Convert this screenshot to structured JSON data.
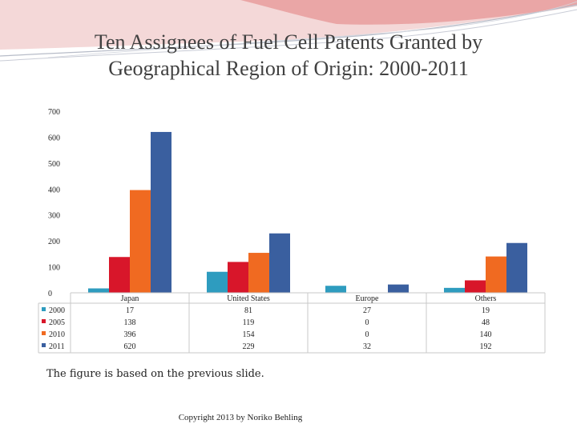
{
  "slide": {
    "title_line1": "Ten Assignees of Fuel Cell Patents Granted by",
    "title_line2": "Geographical Region of Origin: 2000-2011",
    "note": "The figure is based on the previous slide.",
    "copyright": "Copyright 2013 by Noriko Behling"
  },
  "chart_data": {
    "type": "bar",
    "title": "Ten Assignees of Fuel Cell Patents Granted by Geographical Region of Origin: 2000-2011",
    "categories": [
      "Japan",
      "United States",
      "Europe",
      "Others"
    ],
    "series": [
      {
        "name": "2000",
        "color": "#2e9cbf",
        "values": [
          17,
          81,
          27,
          19
        ]
      },
      {
        "name": "2005",
        "color": "#d8162a",
        "values": [
          138,
          119,
          0,
          48
        ]
      },
      {
        "name": "2010",
        "color": "#f06a21",
        "values": [
          396,
          154,
          0,
          140
        ]
      },
      {
        "name": "2011",
        "color": "#3a5f9f",
        "values": [
          620,
          229,
          32,
          192
        ]
      }
    ],
    "yticks": [
      0,
      100,
      200,
      300,
      400,
      500,
      600,
      700
    ],
    "ylim": [
      0,
      700
    ],
    "xlabel": "",
    "ylabel": "",
    "legend": "data-table-left",
    "grid": false
  }
}
